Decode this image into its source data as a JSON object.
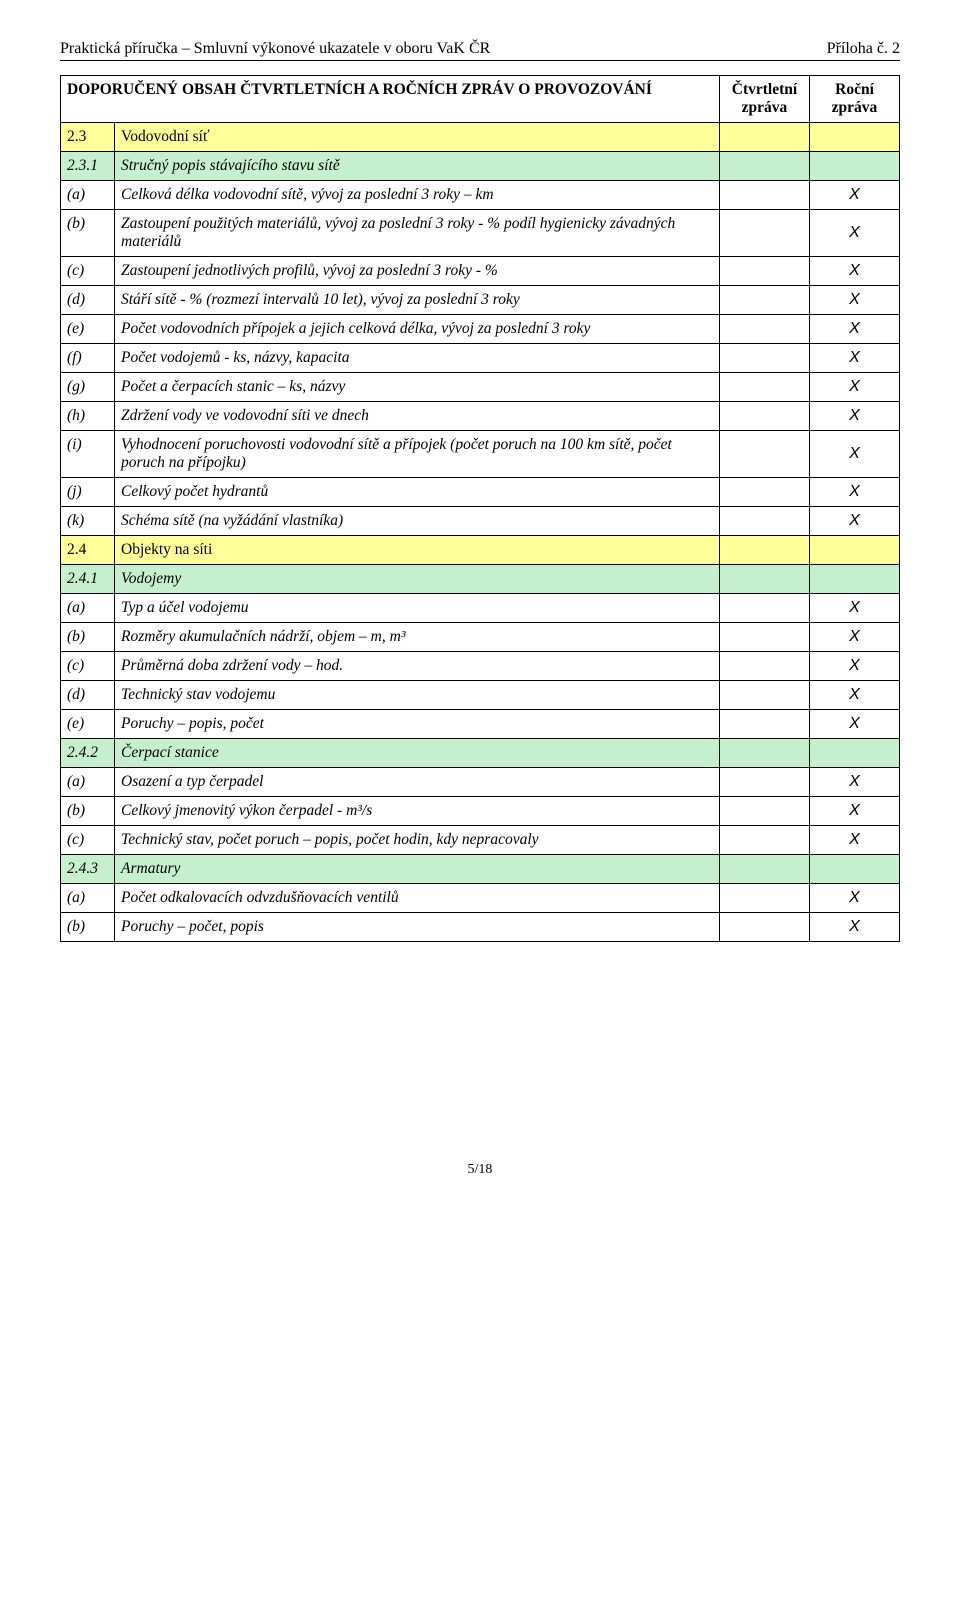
{
  "header": {
    "left": "Praktická příručka – Smluvní výkonové ukazatele v oboru VaK ČR",
    "right": "Příloha č. 2"
  },
  "table": {
    "head": {
      "title": "DOPORUČENÝ OBSAH ČTVRTLETNÍCH A ROČNÍCH ZPRÁV O PROVOZOVÁNÍ",
      "col_q": "Čtvrtletní zpráva",
      "col_r": "Roční zpráva"
    }
  },
  "row_2_3": {
    "key": "2.3",
    "desc": "Vodovodní síť"
  },
  "row_2_3_1": {
    "key": "2.3.1",
    "desc": "Stručný popis stávajícího stavu sítě"
  },
  "row_a1": {
    "key": "(a)",
    "desc": "Celková délka vodovodní sítě, vývoj za poslední 3 roky – km",
    "r": "X"
  },
  "row_b1": {
    "key": "(b)",
    "desc": "Zastoupení použitých materiálů, vývoj za poslední 3 roky - % podíl hygienicky závadných materiálů",
    "r": "X"
  },
  "row_c1": {
    "key": "(c)",
    "desc": "Zastoupení jednotlivých profilů, vývoj za poslední 3 roky - %",
    "r": "X"
  },
  "row_d1": {
    "key": "(d)",
    "desc": "Stáří sítě - % (rozmezí intervalů 10 let), vývoj za poslední 3 roky",
    "r": "X"
  },
  "row_e1": {
    "key": "(e)",
    "desc": "Počet vodovodních přípojek a jejich celková délka, vývoj za poslední 3 roky",
    "r": "X"
  },
  "row_f1": {
    "key": "(f)",
    "desc": "Počet vodojemů - ks, názvy, kapacita",
    "r": "X"
  },
  "row_g1": {
    "key": "(g)",
    "desc": "Počet a čerpacích stanic – ks, názvy",
    "r": "X"
  },
  "row_h1": {
    "key": "(h)",
    "desc": "Zdržení vody ve vodovodní síti ve dnech",
    "r": "X"
  },
  "row_i1": {
    "key": "(i)",
    "desc": "Vyhodnocení poruchovosti vodovodní sítě a přípojek (počet poruch na 100 km sítě, počet poruch na přípojku)",
    "r": "X"
  },
  "row_j1": {
    "key": "(j)",
    "desc": "Celkový počet hydrantů",
    "r": "X"
  },
  "row_k1": {
    "key": "(k)",
    "desc": "Schéma sítě (na vyžádání vlastníka)",
    "r": "X"
  },
  "row_2_4": {
    "key": "2.4",
    "desc": "Objekty na síti"
  },
  "row_2_4_1": {
    "key": "2.4.1",
    "desc": "Vodojemy"
  },
  "row_a2": {
    "key": "(a)",
    "desc": "Typ a účel vodojemu",
    "r": "X"
  },
  "row_b2": {
    "key": "(b)",
    "desc": "Rozměry akumulačních nádrží, objem – m, m³",
    "r": "X"
  },
  "row_c2": {
    "key": "(c)",
    "desc": "Průměrná doba zdržení vody – hod.",
    "r": "X"
  },
  "row_d2": {
    "key": "(d)",
    "desc": "Technický stav vodojemu",
    "r": "X"
  },
  "row_e2": {
    "key": "(e)",
    "desc": "Poruchy – popis, počet",
    "r": "X"
  },
  "row_2_4_2": {
    "key": "2.4.2",
    "desc": "Čerpací stanice"
  },
  "row_a3": {
    "key": "(a)",
    "desc": "Osazení a typ čerpadel",
    "r": "X"
  },
  "row_b3": {
    "key": "(b)",
    "desc": "Celkový jmenovitý výkon čerpadel - m³/s",
    "r": "X"
  },
  "row_c3": {
    "key": "(c)",
    "desc": "Technický stav, počet poruch – popis, počet hodin, kdy nepracovaly",
    "r": "X"
  },
  "row_2_4_3": {
    "key": "2.4.3",
    "desc": "Armatury"
  },
  "row_a4": {
    "key": "(a)",
    "desc": "Počet odkalovacích odvzdušňovacích ventilů",
    "r": "X"
  },
  "row_b4": {
    "key": "(b)",
    "desc": "Poruchy – počet, popis",
    "r": "X"
  },
  "footer": {
    "text": "5/18"
  }
}
